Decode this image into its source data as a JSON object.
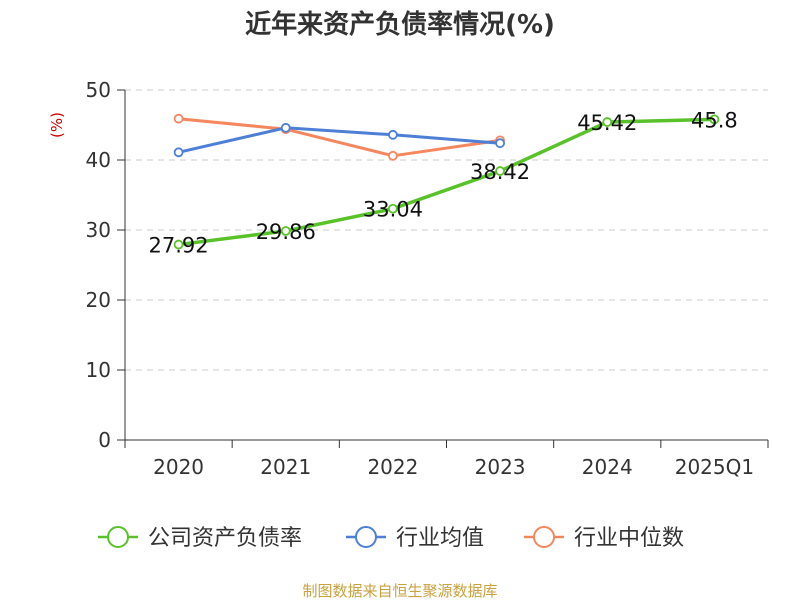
{
  "chart_data": {
    "type": "line",
    "title": "近年来资产负债率情况(%)",
    "unit_label": "(%)",
    "categories": [
      "2020",
      "2021",
      "2022",
      "2023",
      "2024",
      "2025Q1"
    ],
    "y_ticks": [
      "0",
      "10",
      "20",
      "30",
      "40",
      "50"
    ],
    "ylim": [
      0,
      50
    ],
    "grid": true,
    "legend_position": "bottom",
    "series": [
      {
        "name": "公司资产负债率",
        "color": "#5ac229",
        "values": [
          27.92,
          29.86,
          33.04,
          38.42,
          45.42,
          45.8
        ],
        "labels": [
          "27.92",
          "29.86",
          "33.04",
          "38.42",
          "45.42",
          "45.8"
        ]
      },
      {
        "name": "行业均值",
        "color": "#4d7fd6",
        "values": [
          41.1,
          44.6,
          43.6,
          42.4,
          null,
          null
        ]
      },
      {
        "name": "行业中位数",
        "color": "#f5875f",
        "values": [
          45.9,
          44.4,
          40.6,
          42.8,
          null,
          null
        ]
      }
    ]
  },
  "footer": {
    "source": "制图数据来自恒生聚源数据库"
  }
}
